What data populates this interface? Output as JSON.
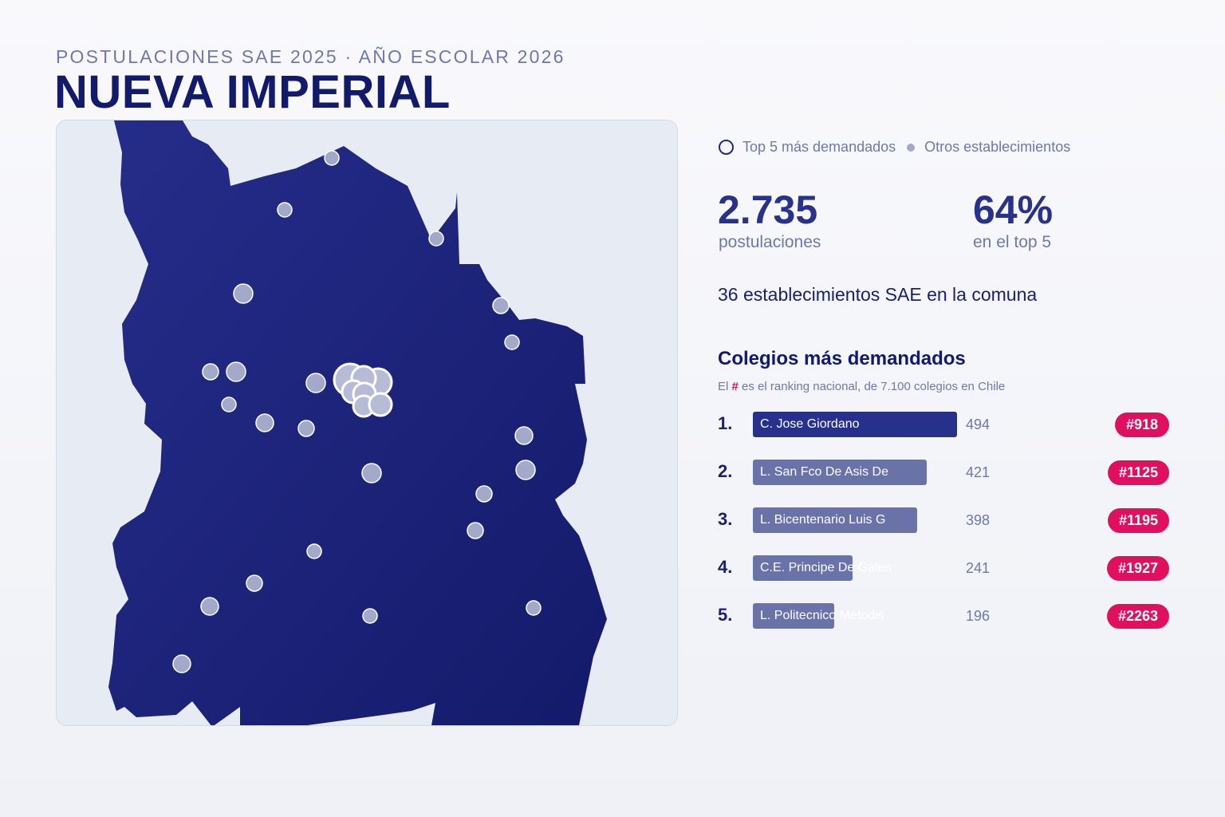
{
  "header": {
    "eyebrow": "POSTULACIONES SAE 2025 · AÑO ESCOLAR 2026",
    "title": "NUEVA IMPERIAL"
  },
  "legend": {
    "top5_label": "Top 5 más demandados",
    "others_label": "Otros establecimientos"
  },
  "stats": {
    "applications_value": "2.735",
    "applications_label": "postulaciones",
    "top5_share_value": "64%",
    "top5_share_label": "en el top 5",
    "schools_count_text": "36 establecimientos SAE en la comuna"
  },
  "ranking": {
    "title": "Colegios más demandados",
    "note_prefix": "El",
    "note_hash": "#",
    "note_suffix": "es el ranking nacional, de 7.100 colegios en Chile",
    "items": [
      {
        "position": "1.",
        "name": "C. Jose Giordano",
        "applications": 494,
        "national_rank": "#918"
      },
      {
        "position": "2.",
        "name": "L. San Fco De Asis De",
        "applications": 421,
        "national_rank": "#1125"
      },
      {
        "position": "3.",
        "name": "L. Bicentenario Luis G",
        "applications": 398,
        "national_rank": "#1195"
      },
      {
        "position": "4.",
        "name": "C.E. Principe De Gales",
        "applications": 241,
        "national_rank": "#1927"
      },
      {
        "position": "5.",
        "name": "L. Politecnico Metodis",
        "applications": 196,
        "national_rank": "#2263"
      }
    ]
  },
  "colors": {
    "territory": "#1e2680",
    "top5_ring": "#1f2b83",
    "marker_fill": "#a3a9c8",
    "badge": "#e0105f",
    "bar_top": "#27318c",
    "bar_other": "#6a73a8"
  }
}
